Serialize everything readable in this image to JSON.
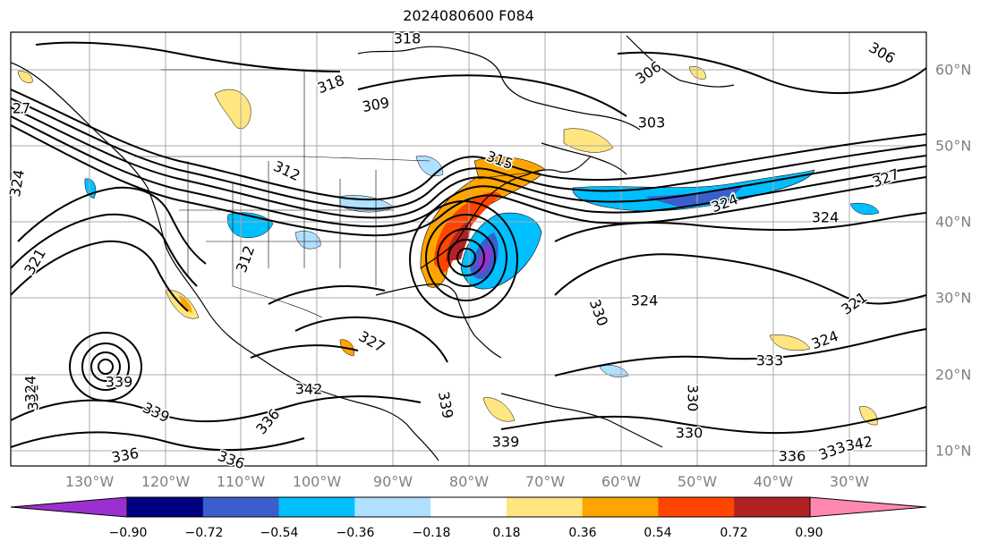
{
  "title": "2024080600 F084",
  "lon_labels": [
    "130°W",
    "120°W",
    "110°W",
    "100°W",
    "90°W",
    "80°W",
    "70°W",
    "60°W",
    "50°W",
    "40°W",
    "30°W"
  ],
  "lat_labels": [
    "60°N",
    "50°N",
    "40°N",
    "30°N",
    "20°N",
    "10°N"
  ],
  "colorbar": {
    "tick_labels": [
      "−0.90",
      "−0.72",
      "−0.54",
      "−0.36",
      "−0.18",
      "0.18",
      "0.36",
      "0.54",
      "0.72",
      "0.90"
    ],
    "colors": [
      "#9b30d0",
      "#000080",
      "#3a5fcd",
      "#00bfff",
      "#b0e0ff",
      "#ffffff",
      "#ffe680",
      "#ffa500",
      "#ff4500",
      "#b22222",
      "#ff88b0"
    ]
  },
  "contour_labels": [
    {
      "text": "318"
    },
    {
      "text": "318"
    },
    {
      "text": "309"
    },
    {
      "text": "306"
    },
    {
      "text": "306"
    },
    {
      "text": "303"
    },
    {
      "text": "315"
    },
    {
      "text": "312"
    },
    {
      "text": "327"
    },
    {
      "text": "324"
    },
    {
      "text": "324"
    },
    {
      "text": "27"
    },
    {
      "text": "324"
    },
    {
      "text": "321"
    },
    {
      "text": "312"
    },
    {
      "text": "324"
    },
    {
      "text": "330"
    },
    {
      "text": "321"
    },
    {
      "text": "324"
    },
    {
      "text": "333"
    },
    {
      "text": "327"
    },
    {
      "text": "336"
    },
    {
      "text": "342"
    },
    {
      "text": "339"
    },
    {
      "text": "339"
    },
    {
      "text": "336"
    },
    {
      "text": "336"
    },
    {
      "text": "339"
    },
    {
      "text": "333"
    },
    {
      "text": "330"
    },
    {
      "text": "336"
    },
    {
      "text": "339"
    },
    {
      "text": "342"
    },
    {
      "text": "330"
    },
    {
      "text": "336"
    },
    {
      "text": "324"
    },
    {
      "text": "339"
    }
  ]
}
